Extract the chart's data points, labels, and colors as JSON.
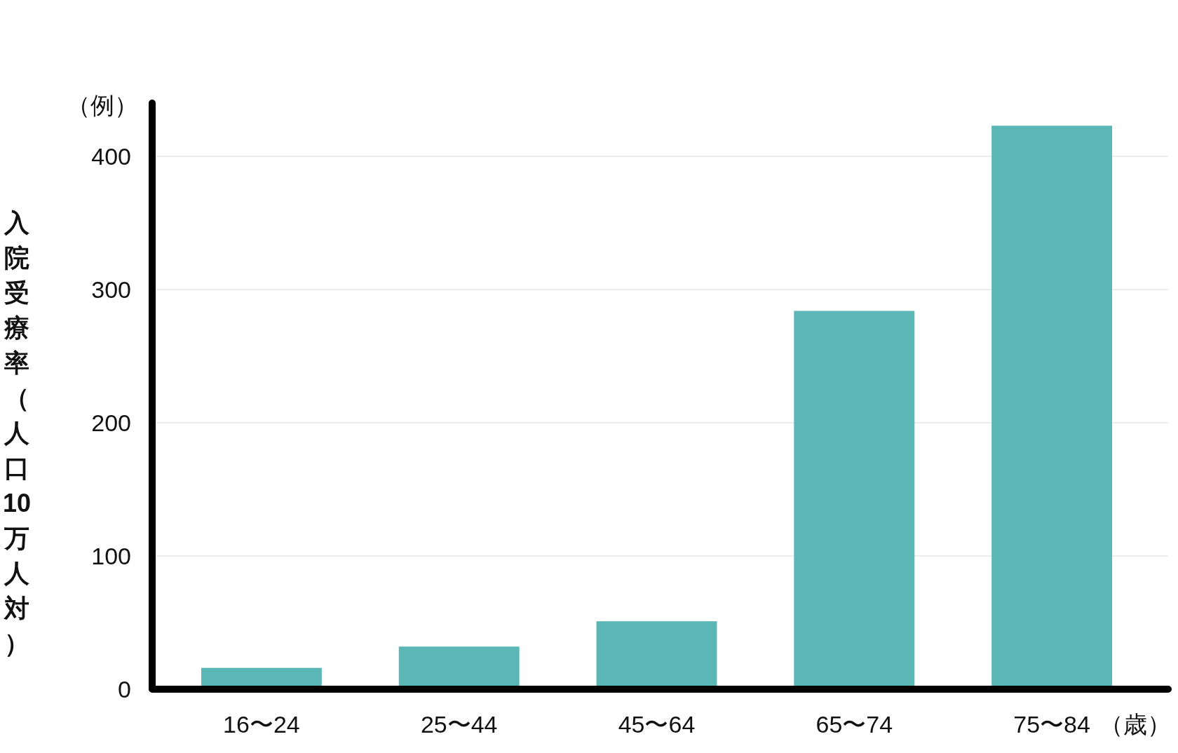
{
  "chart_data": {
    "type": "bar",
    "categories": [
      "16〜24",
      "25〜44",
      "45〜64",
      "65〜74",
      "75〜84"
    ],
    "values": [
      16,
      32,
      51,
      284,
      423
    ],
    "color": "#5bb7b6",
    "xlabel": "（歳）",
    "ylabel": "入院受療率（人口10万人対）",
    "annotations": [
      "（例）"
    ],
    "ylim": [
      0,
      440
    ],
    "yticks": [
      0,
      100,
      200,
      300,
      400
    ],
    "grid": "y"
  }
}
